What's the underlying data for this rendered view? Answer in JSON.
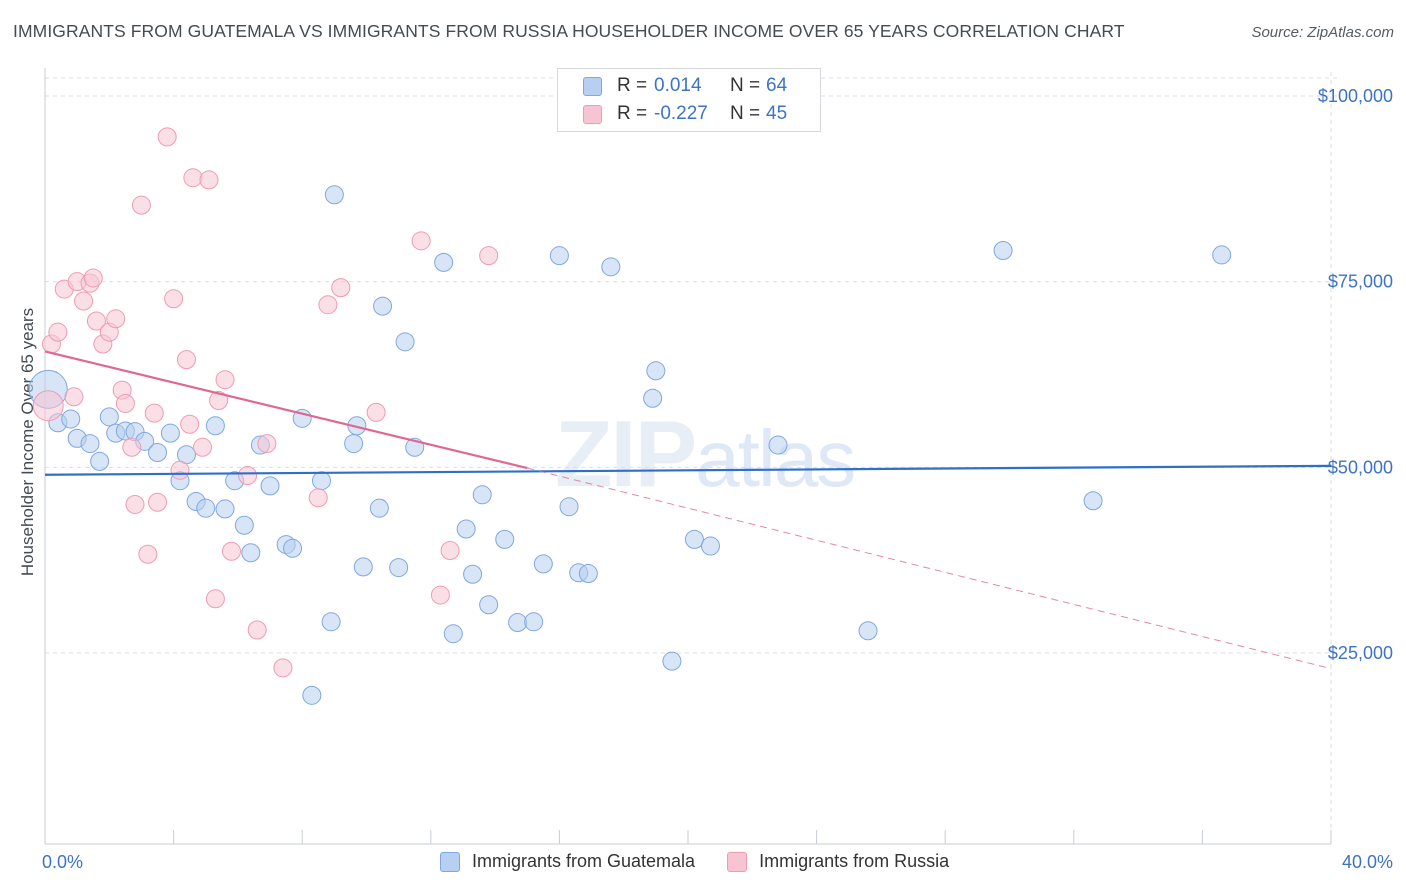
{
  "title": "IMMIGRANTS FROM GUATEMALA VS IMMIGRANTS FROM RUSSIA HOUSEHOLDER INCOME OVER 65 YEARS CORRELATION CHART",
  "source": "Source: ZipAtlas.com",
  "watermark": {
    "zip": "ZIP",
    "atlas": "atlas"
  },
  "legend_top": {
    "rows": [
      {
        "r_label": "R =",
        "r_value": "0.014",
        "n_label": "N =",
        "n_value": "64"
      },
      {
        "r_label": "R =",
        "r_value": "-0.227",
        "n_label": "N =",
        "n_value": "45"
      }
    ]
  },
  "legend_bottom": [
    "Immigrants from Guatemala",
    "Immigrants from Russia"
  ],
  "colors": {
    "guatemala_fill": "#b7cff1",
    "guatemala_stroke": "#7fa8e0",
    "guatemala_line": "#2f6fcb",
    "russia_fill": "#f8c4d4",
    "russia_stroke": "#ee9bb4",
    "russia_line": "#e06890",
    "tick_text": "#3d73c6",
    "grid": "#d9dde2"
  },
  "chart_data": {
    "type": "scatter",
    "title": "IMMIGRANTS FROM GUATEMALA VS IMMIGRANTS FROM RUSSIA HOUSEHOLDER INCOME OVER 65 YEARS CORRELATION CHART",
    "xlabel": "",
    "ylabel": "Householder Income Over 65 years",
    "xlim": [
      0,
      40
    ],
    "ylim": [
      5000,
      105000
    ],
    "x_tick_labels": [
      "0.0%",
      "40.0%"
    ],
    "y_ticks": [
      25000,
      50000,
      75000,
      100000
    ],
    "y_tick_labels": [
      "$25,000",
      "$50,000",
      "$75,000",
      "$100,000"
    ],
    "grid": true,
    "legend_position": "bottom",
    "series": [
      {
        "name": "Immigrants from Guatemala",
        "r": 0.014,
        "n": 64,
        "trend": {
          "x": [
            0,
            40
          ],
          "y": [
            49000,
            50200
          ]
        },
        "points": [
          [
            0.1,
            60500
          ],
          [
            0.4,
            56000
          ],
          [
            0.8,
            56500
          ],
          [
            1.0,
            53900
          ],
          [
            1.4,
            53200
          ],
          [
            1.7,
            50800
          ],
          [
            2.0,
            56800
          ],
          [
            2.2,
            54600
          ],
          [
            2.5,
            54900
          ],
          [
            2.8,
            54800
          ],
          [
            3.1,
            53500
          ],
          [
            3.5,
            52000
          ],
          [
            3.9,
            54600
          ],
          [
            4.2,
            48200
          ],
          [
            4.4,
            51700
          ],
          [
            4.7,
            45400
          ],
          [
            5.0,
            44500
          ],
          [
            5.3,
            55600
          ],
          [
            5.6,
            44400
          ],
          [
            5.9,
            48200
          ],
          [
            6.2,
            42200
          ],
          [
            6.4,
            38500
          ],
          [
            6.7,
            53000
          ],
          [
            7.0,
            47500
          ],
          [
            7.5,
            39600
          ],
          [
            7.7,
            39100
          ],
          [
            8.0,
            56600
          ],
          [
            8.3,
            19300
          ],
          [
            8.6,
            48200
          ],
          [
            8.9,
            29200
          ],
          [
            9.0,
            86700
          ],
          [
            9.6,
            53200
          ],
          [
            9.7,
            55600
          ],
          [
            9.9,
            36600
          ],
          [
            10.5,
            71700
          ],
          [
            10.4,
            44500
          ],
          [
            11.0,
            36500
          ],
          [
            11.2,
            66900
          ],
          [
            11.5,
            52700
          ],
          [
            12.4,
            77600
          ],
          [
            12.7,
            27600
          ],
          [
            13.1,
            41700
          ],
          [
            13.3,
            35600
          ],
          [
            13.6,
            46300
          ],
          [
            13.8,
            31500
          ],
          [
            14.3,
            40300
          ],
          [
            14.7,
            29100
          ],
          [
            15.2,
            29200
          ],
          [
            15.5,
            37000
          ],
          [
            16.0,
            78500
          ],
          [
            16.3,
            44700
          ],
          [
            16.6,
            35800
          ],
          [
            16.9,
            35700
          ],
          [
            17.6,
            77000
          ],
          [
            19.0,
            63000
          ],
          [
            18.9,
            59300
          ],
          [
            19.5,
            23900
          ],
          [
            20.2,
            40300
          ],
          [
            20.7,
            39400
          ],
          [
            22.8,
            53000
          ],
          [
            25.6,
            28000
          ],
          [
            29.8,
            79200
          ],
          [
            32.6,
            45500
          ],
          [
            36.6,
            78600
          ]
        ]
      },
      {
        "name": "Immigrants from Russia",
        "r": -0.227,
        "n": 45,
        "trend": {
          "x": [
            0,
            15
          ],
          "y": [
            65600,
            49900
          ]
        },
        "trend_extended": {
          "x": [
            15,
            40
          ],
          "y": [
            49900,
            22900
          ]
        },
        "points": [
          [
            0.1,
            58300
          ],
          [
            0.2,
            66600
          ],
          [
            0.4,
            68200
          ],
          [
            0.6,
            74000
          ],
          [
            0.9,
            59500
          ],
          [
            1.0,
            75000
          ],
          [
            1.2,
            72400
          ],
          [
            1.4,
            74800
          ],
          [
            1.5,
            75500
          ],
          [
            1.6,
            69700
          ],
          [
            1.8,
            66600
          ],
          [
            2.0,
            68200
          ],
          [
            2.2,
            70000
          ],
          [
            2.4,
            60400
          ],
          [
            2.5,
            58600
          ],
          [
            2.7,
            52700
          ],
          [
            2.8,
            45000
          ],
          [
            3.0,
            85300
          ],
          [
            3.2,
            38300
          ],
          [
            3.4,
            57300
          ],
          [
            3.5,
            45300
          ],
          [
            3.8,
            94500
          ],
          [
            4.0,
            72700
          ],
          [
            4.2,
            49600
          ],
          [
            4.4,
            64500
          ],
          [
            4.5,
            55800
          ],
          [
            4.6,
            89000
          ],
          [
            4.9,
            52700
          ],
          [
            5.1,
            88700
          ],
          [
            5.3,
            32300
          ],
          [
            5.4,
            59000
          ],
          [
            5.6,
            61800
          ],
          [
            5.8,
            38700
          ],
          [
            6.3,
            48900
          ],
          [
            6.6,
            28100
          ],
          [
            6.9,
            53200
          ],
          [
            7.4,
            23000
          ],
          [
            8.5,
            45900
          ],
          [
            8.8,
            71900
          ],
          [
            9.2,
            74200
          ],
          [
            10.3,
            57400
          ],
          [
            11.7,
            80500
          ],
          [
            12.3,
            32800
          ],
          [
            12.6,
            38800
          ],
          [
            13.8,
            78500
          ]
        ]
      }
    ]
  }
}
